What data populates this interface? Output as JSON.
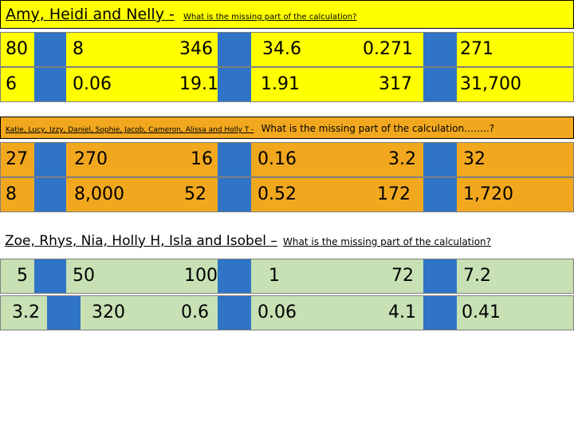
{
  "colors": {
    "yellow": "#ffff00",
    "orange": "#f2a81e",
    "green": "#c7e0b4",
    "box_blue": "#2f74c6"
  },
  "sections": [
    {
      "id": "amy",
      "names": "Amy, Heidi and Nelly -",
      "question": "What is the missing part of the calculation?",
      "rows": [
        [
          "80",
          "8",
          "346",
          "34.6",
          "0.271",
          "271"
        ],
        [
          "6",
          "0.06",
          "19.1",
          "1.91",
          "317",
          "31,700"
        ]
      ]
    },
    {
      "id": "katie",
      "names": "Katie, Lucy, Izzy, Daniel, Sophie, Jacob, Cameron, Alissa and Holly T -",
      "question": "What is the missing part of the calculation……..?",
      "rows": [
        [
          "27",
          "270",
          "16",
          "0.16",
          "3.2",
          "32"
        ],
        [
          "8",
          "8,000",
          "52",
          "0.52",
          "172",
          "1,720"
        ]
      ]
    },
    {
      "id": "zoe",
      "names": "Zoe, Rhys, Nia, Holly H, Isla and Isobel –",
      "question": "What is the missing part of the calculation?",
      "rows": [
        [
          "5",
          "50",
          "100",
          "1",
          "72",
          "7.2"
        ],
        [
          "3.2",
          "320",
          "0.6",
          "0.06",
          "4.1",
          "0.41"
        ]
      ]
    }
  ]
}
